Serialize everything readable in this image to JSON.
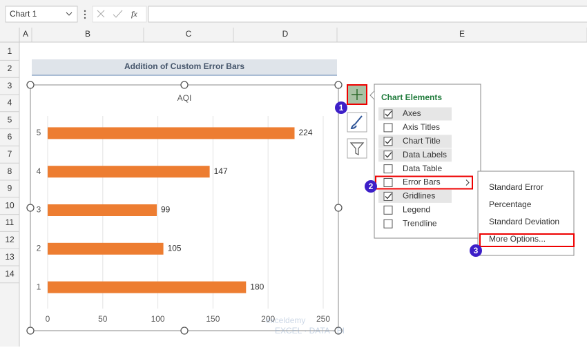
{
  "name_box": "Chart 1",
  "formula_icons": [
    "fx"
  ],
  "columns": [
    "A",
    "B",
    "C",
    "D",
    "E"
  ],
  "rows": [
    "1",
    "2",
    "3",
    "4",
    "5",
    "6",
    "7",
    "8",
    "9",
    "10",
    "11",
    "12",
    "13",
    "14"
  ],
  "sheet_title": "Addition of Custom Error Bars",
  "chart": {
    "type": "bar",
    "title": "AQI",
    "categories": [
      "1",
      "2",
      "3",
      "4",
      "5"
    ],
    "values": [
      180,
      105,
      99,
      147,
      224
    ],
    "color": "#ed7d31",
    "xlim": [
      0,
      250
    ],
    "xticks": [
      0,
      50,
      100,
      150,
      200,
      250
    ],
    "grid": true,
    "data_labels": true
  },
  "chart_elements": {
    "title": "Chart Elements",
    "items": [
      {
        "label": "Axes",
        "checked": true
      },
      {
        "label": "Axis Titles",
        "checked": false
      },
      {
        "label": "Chart Title",
        "checked": true
      },
      {
        "label": "Data Labels",
        "checked": true
      },
      {
        "label": "Data Table",
        "checked": false
      },
      {
        "label": "Error Bars",
        "checked": false
      },
      {
        "label": "Gridlines",
        "checked": true
      },
      {
        "label": "Legend",
        "checked": false
      },
      {
        "label": "Trendline",
        "checked": false
      }
    ]
  },
  "error_bars_menu": [
    "Standard Error",
    "Percentage",
    "Standard Deviation",
    "More Options..."
  ],
  "badges": [
    "1",
    "2",
    "3"
  ],
  "watermark": {
    "name": "exceldemy",
    "tagline": "EXCEL · DATA · BI"
  }
}
